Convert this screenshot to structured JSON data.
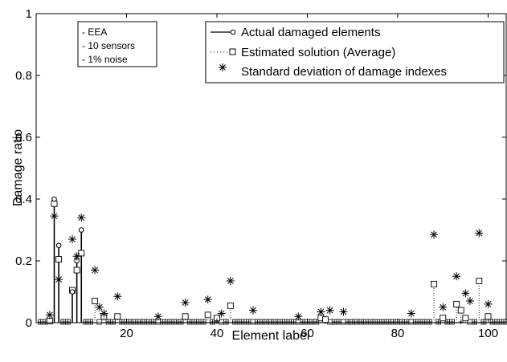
{
  "chart_data": {
    "type": "scatter",
    "xlabel": "Element label",
    "ylabel": "Damage ratio",
    "xlim": [
      0,
      104
    ],
    "ylim": [
      0,
      1
    ],
    "xticks": [
      20,
      40,
      60,
      80,
      100
    ],
    "yticks": [
      0,
      0.2,
      0.4,
      0.6,
      0.8,
      1
    ],
    "ytick_labels": [
      "0",
      "0.2",
      "0.4",
      "0.6",
      "0.8",
      "1"
    ],
    "grid": false,
    "legend_position": "top-right",
    "annotation_lines": [
      "- EEA",
      "- 10 sensors",
      "- 1% noise"
    ],
    "series": [
      {
        "name": "Actual damaged elements",
        "style": "stem-circle",
        "color": "#000000",
        "x": [
          4,
          5,
          8,
          9,
          10
        ],
        "y": [
          0.4,
          0.25,
          0.1,
          0.2,
          0.3
        ]
      },
      {
        "name": "Estimated solution (Average)",
        "style": "stem-square",
        "color": "#000000",
        "x": [
          3,
          4,
          5,
          8,
          9,
          10,
          13,
          15,
          18,
          33,
          38,
          40,
          43,
          63,
          64,
          88,
          90,
          93,
          94,
          95,
          98,
          100
        ],
        "y": [
          0.005,
          0.385,
          0.205,
          0.105,
          0.17,
          0.225,
          0.07,
          0.02,
          0.02,
          0.02,
          0.025,
          0.015,
          0.055,
          0.015,
          0.01,
          0.125,
          0.015,
          0.06,
          0.04,
          0.015,
          0.135,
          0.02
        ]
      },
      {
        "name": "Standard deviation of damage indexes",
        "style": "asterisk",
        "color": "#000000",
        "x": [
          3,
          4,
          5,
          8,
          9,
          10,
          13,
          14,
          15,
          18,
          27,
          33,
          38,
          41,
          43,
          48,
          58,
          63,
          65,
          68,
          83,
          88,
          90,
          93,
          95,
          96,
          98,
          100
        ],
        "y": [
          0.025,
          0.345,
          0.14,
          0.27,
          0.215,
          0.34,
          0.17,
          0.05,
          0.03,
          0.085,
          0.02,
          0.065,
          0.075,
          0.03,
          0.135,
          0.04,
          0.02,
          0.035,
          0.04,
          0.035,
          0.03,
          0.285,
          0.05,
          0.15,
          0.095,
          0.07,
          0.29,
          0.06
        ]
      }
    ]
  }
}
